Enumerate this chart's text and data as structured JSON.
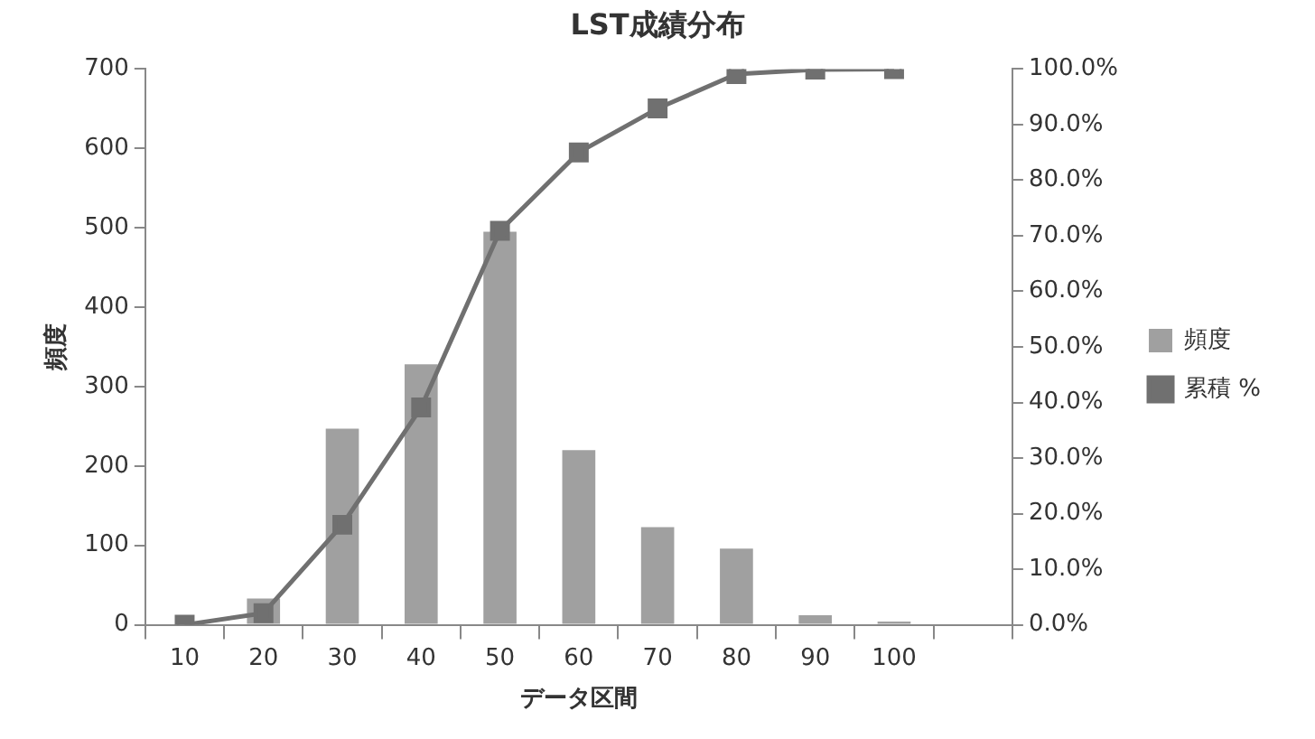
{
  "chart_data": {
    "type": "bar",
    "title": "LST成績分布",
    "xlabel": "データ区間",
    "ylabel": "頻度",
    "categories": [
      "10",
      "20",
      "30",
      "40",
      "50",
      "60",
      "70",
      "80",
      "90",
      "100",
      null
    ],
    "series": [
      {
        "name": "頻度",
        "color": "#a0a0a0",
        "values": [
          0,
          33,
          247,
          328,
          495,
          220,
          123,
          96,
          12,
          4,
          null
        ]
      },
      {
        "name": "累積 %",
        "type": "line",
        "axis": "y2",
        "color": "#707070",
        "marker": "square",
        "values": [
          0,
          2.1,
          18,
          39.1,
          70.9,
          85,
          92.9,
          99.1,
          99.9,
          100,
          null
        ]
      }
    ],
    "ylim": [
      0,
      700
    ],
    "yticks": [
      0,
      100,
      200,
      300,
      400,
      500,
      600,
      700
    ],
    "y2lim": [
      0,
      100
    ],
    "y2ticks": [
      {
        "value": 0,
        "label": "0.0%"
      },
      {
        "value": 10,
        "label": "10.0%"
      },
      {
        "value": 20,
        "label": "20.0%"
      },
      {
        "value": 30,
        "label": "30.0%"
      },
      {
        "value": 40,
        "label": "40.0%"
      },
      {
        "value": 50,
        "label": "50.0%"
      },
      {
        "value": 60,
        "label": "60.0%"
      },
      {
        "value": 70,
        "label": "70.0%"
      },
      {
        "value": 80,
        "label": "80.0%"
      },
      {
        "value": 90,
        "label": "90.0%"
      },
      {
        "value": 100,
        "label": "100.0%"
      }
    ],
    "grid": false,
    "legend": "right"
  }
}
